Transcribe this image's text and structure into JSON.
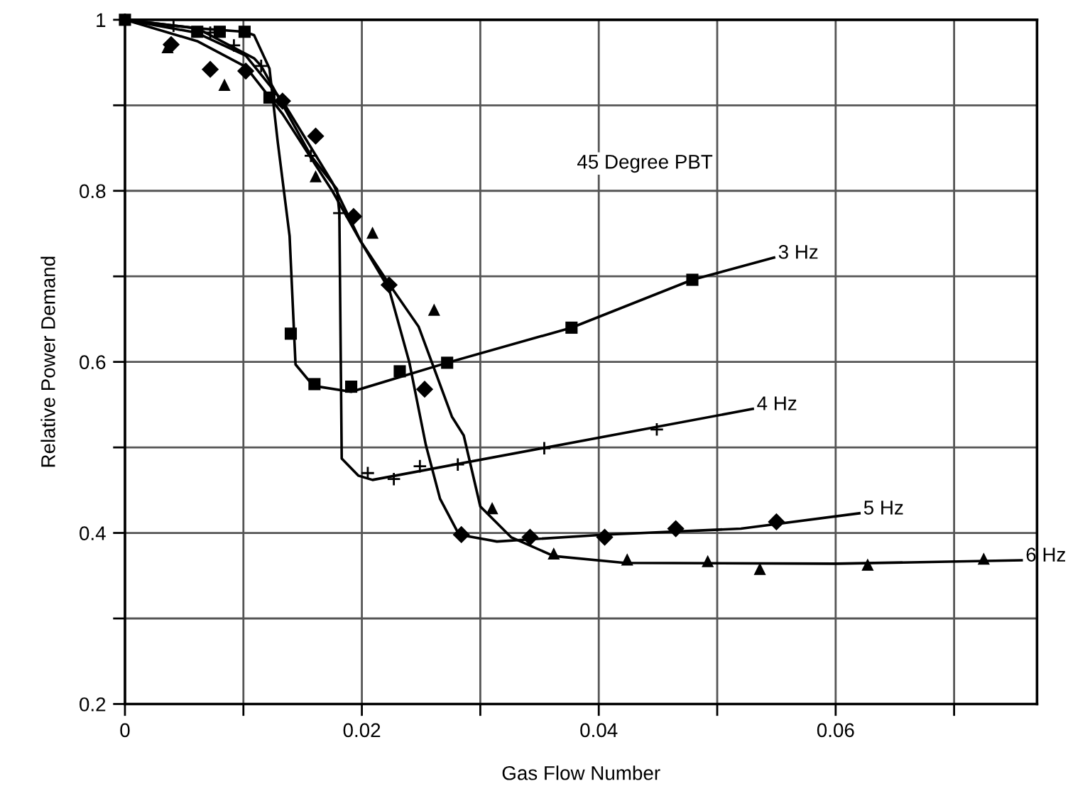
{
  "chart_data": {
    "type": "line",
    "xlabel": "Gas Flow Number",
    "ylabel": "Relative Power Demand",
    "annotations": [
      "45 Degree PBT"
    ],
    "xlim": [
      0,
      0.077
    ],
    "ylim": [
      0.2,
      1
    ],
    "xticks": [
      0,
      {
        "value": 0.01,
        "label": null
      },
      0.02,
      {
        "value": 0.03,
        "label": null
      },
      0.04,
      {
        "value": 0.05,
        "label": null
      },
      0.06,
      {
        "value": 0.07,
        "label": null
      }
    ],
    "yticks": [
      0.2,
      {
        "value": 0.3,
        "label": null
      },
      0.4,
      {
        "value": 0.5,
        "label": null
      },
      0.6,
      {
        "value": 0.7,
        "label": null
      },
      0.8,
      {
        "value": 0.9,
        "label": null
      },
      1
    ],
    "grid": true,
    "legend": false,
    "series": [
      {
        "name": "3 Hz",
        "color": "#000000",
        "marker": "none",
        "x": [
          0,
          0.0061,
          0.0101,
          0.0109,
          0.0122,
          0.0129,
          0.0139,
          0.0144,
          0.0159,
          0.0191,
          0.0272,
          0.0377,
          0.0479,
          0.0548
        ],
        "values": [
          1,
          0.99,
          0.986,
          0.982,
          0.943,
          0.857,
          0.747,
          0.597,
          0.572,
          0.565,
          0.599,
          0.64,
          0.696,
          0.722
        ]
      },
      {
        "type": "scatter",
        "color": "#000000",
        "marker": "square",
        "x": [
          0,
          0.0061,
          0.008,
          0.0101,
          0.0122,
          0.014,
          0.016,
          0.0191,
          0.0232,
          0.0272,
          0.0377,
          0.0479
        ],
        "values": [
          1,
          0.986,
          0.986,
          0.986,
          0.909,
          0.633,
          0.574,
          0.571,
          0.589,
          0.599,
          0.64,
          0.696
        ]
      },
      {
        "name": "4 Hz",
        "color": "#000000",
        "marker": "none",
        "x": [
          0,
          0.0061,
          0.0109,
          0.0115,
          0.0157,
          0.0179,
          0.0181,
          0.0183,
          0.0197,
          0.0209,
          0.053
        ],
        "values": [
          1,
          0.99,
          0.955,
          0.946,
          0.841,
          0.802,
          0.774,
          0.487,
          0.467,
          0.462,
          0.545
        ]
      },
      {
        "type": "scatter",
        "color": "#000000",
        "marker": "cross",
        "x": [
          0,
          0.0041,
          0.0072,
          0.0092,
          0.0115,
          0.0157,
          0.0181,
          0.0205,
          0.0227,
          0.0249,
          0.0281,
          0.0354,
          0.0449
        ],
        "values": [
          1,
          0.993,
          0.985,
          0.97,
          0.946,
          0.841,
          0.774,
          0.47,
          0.463,
          0.478,
          0.48,
          0.499,
          0.521
        ]
      },
      {
        "name": "5 Hz",
        "color": "#000000",
        "marker": "none",
        "x": [
          0,
          0.006,
          0.0102,
          0.0133,
          0.0175,
          0.0199,
          0.0223,
          0.024,
          0.0254,
          0.0266,
          0.0282,
          0.0314,
          0.0405,
          0.052,
          0.062
        ],
        "values": [
          1,
          0.985,
          0.958,
          0.905,
          0.81,
          0.741,
          0.685,
          0.6,
          0.503,
          0.44,
          0.398,
          0.39,
          0.398,
          0.405,
          0.423
        ]
      },
      {
        "type": "scatter",
        "color": "#000000",
        "marker": "diamond",
        "x": [
          0.0039,
          0.0072,
          0.0102,
          0.0133,
          0.0161,
          0.0193,
          0.0223,
          0.0253,
          0.0284,
          0.0342,
          0.0405,
          0.0465,
          0.055
        ],
        "values": [
          0.971,
          0.942,
          0.94,
          0.905,
          0.864,
          0.77,
          0.69,
          0.568,
          0.398,
          0.395,
          0.395,
          0.405,
          0.413
        ]
      },
      {
        "name": "6 Hz",
        "color": "#000000",
        "marker": "none",
        "x": [
          0,
          0.0061,
          0.0102,
          0.0133,
          0.0175,
          0.0199,
          0.0223,
          0.0248,
          0.0276,
          0.0286,
          0.03,
          0.0326,
          0.0362,
          0.0422,
          0.06,
          0.0757
        ],
        "values": [
          1,
          0.975,
          0.945,
          0.89,
          0.8,
          0.741,
          0.691,
          0.641,
          0.536,
          0.514,
          0.431,
          0.395,
          0.373,
          0.365,
          0.364,
          0.368
        ]
      },
      {
        "type": "scatter",
        "color": "#000000",
        "marker": "triangle",
        "x": [
          0.0036,
          0.0084,
          0.0161,
          0.0209,
          0.0261,
          0.031,
          0.0362,
          0.0424,
          0.0492,
          0.0536,
          0.0627,
          0.0725
        ],
        "values": [
          0.968,
          0.924,
          0.817,
          0.751,
          0.661,
          0.429,
          0.376,
          0.369,
          0.367,
          0.358,
          0.363,
          0.37
        ]
      }
    ]
  }
}
